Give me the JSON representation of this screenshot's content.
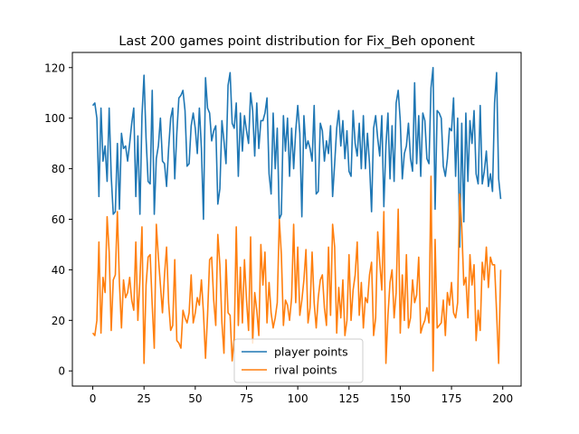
{
  "chart_data": {
    "type": "line",
    "title": "Last 200 games point distribution for Fix_Beh oponent",
    "xlabel": "",
    "ylabel": "",
    "xlim": [
      -9.95,
      208.95
    ],
    "ylim": [
      -6,
      126
    ],
    "xticks": [
      0,
      25,
      50,
      75,
      100,
      125,
      150,
      175,
      200
    ],
    "yticks": [
      0,
      20,
      40,
      60,
      80,
      100,
      120
    ],
    "grid": false,
    "legend_position": "lower-center",
    "series": [
      {
        "name": "player points",
        "color": "#1f77b4",
        "values": [
          105,
          106,
          100,
          69,
          104,
          83,
          89,
          75,
          104,
          77,
          62,
          63,
          90,
          64,
          94,
          88,
          89,
          83,
          90,
          98,
          104,
          69,
          93,
          62,
          101,
          117,
          92,
          75,
          74,
          111,
          62,
          84,
          89,
          100,
          83,
          82,
          73,
          88,
          100,
          104,
          76,
          94,
          108,
          109,
          111,
          103,
          81,
          82,
          97,
          102,
          96,
          86,
          104,
          88,
          60,
          116,
          104,
          102,
          91,
          95,
          97,
          66,
          72,
          99,
          91,
          82,
          113,
          118,
          98,
          96,
          106,
          77,
          102,
          87,
          101,
          95,
          90,
          110,
          103,
          85,
          106,
          88,
          99,
          99,
          102,
          108,
          78,
          70,
          102,
          80,
          96,
          60,
          62,
          101,
          87,
          100,
          77,
          96,
          80,
          95,
          105,
          94,
          61,
          101,
          88,
          91,
          88,
          83,
          105,
          70,
          71,
          98,
          95,
          83,
          91,
          86,
          97,
          69,
          82,
          96,
          103,
          89,
          99,
          84,
          95,
          79,
          77,
          103,
          90,
          85,
          98,
          80,
          101,
          80,
          94,
          82,
          63,
          96,
          101,
          92,
          85,
          101,
          65,
          89,
          102,
          76,
          97,
          75,
          106,
          111,
          99,
          76,
          86,
          89,
          98,
          84,
          79,
          114,
          82,
          101,
          77,
          102,
          99,
          84,
          82,
          112,
          120,
          64,
          103,
          102,
          100,
          81,
          77,
          84,
          96,
          95,
          108,
          77,
          100,
          49,
          98,
          59,
          102,
          75,
          99,
          90,
          103,
          78,
          74,
          105,
          74,
          79,
          87,
          73,
          78,
          71,
          106,
          118,
          76,
          68
        ]
      },
      {
        "name": "rival points",
        "color": "#ff7f0e",
        "values": [
          15,
          14,
          20,
          51,
          15,
          37,
          31,
          61,
          47,
          16,
          36,
          38,
          63,
          35,
          17,
          36,
          29,
          31,
          37,
          28,
          24,
          51,
          20,
          36,
          57,
          3,
          34,
          45,
          46,
          26,
          9,
          58,
          45,
          34,
          23,
          38,
          49,
          27,
          16,
          18,
          44,
          12,
          11,
          9,
          24,
          21,
          19,
          23,
          38,
          19,
          23,
          29,
          26,
          36,
          23,
          5,
          22,
          44,
          45,
          28,
          18,
          54,
          42,
          19,
          7,
          44,
          23,
          22,
          4,
          13,
          57,
          18,
          41,
          19,
          44,
          28,
          16,
          53,
          11,
          31,
          24,
          14,
          50,
          34,
          47,
          19,
          35,
          23,
          17,
          21,
          27,
          60,
          46,
          18,
          28,
          26,
          20,
          29,
          58,
          27,
          49,
          22,
          28,
          36,
          48,
          19,
          25,
          47,
          27,
          17,
          29,
          36,
          38,
          25,
          18,
          49,
          22,
          58,
          49,
          15,
          33,
          21,
          36,
          14,
          20,
          46,
          20,
          32,
          38,
          51,
          22,
          35,
          17,
          29,
          27,
          38,
          43,
          14,
          21,
          55,
          43,
          32,
          63,
          3,
          22,
          35,
          40,
          21,
          31,
          64,
          15,
          38,
          20,
          46,
          17,
          21,
          36,
          27,
          30,
          45,
          15,
          18,
          20,
          25,
          19,
          77,
          0,
          52,
          17,
          18,
          19,
          28,
          14,
          31,
          26,
          35,
          23,
          21,
          27,
          70,
          57,
          34,
          37,
          21,
          46,
          34,
          42,
          12,
          24,
          16,
          43,
          36,
          49,
          33,
          45,
          42,
          42,
          23,
          3,
          40
        ]
      }
    ]
  }
}
